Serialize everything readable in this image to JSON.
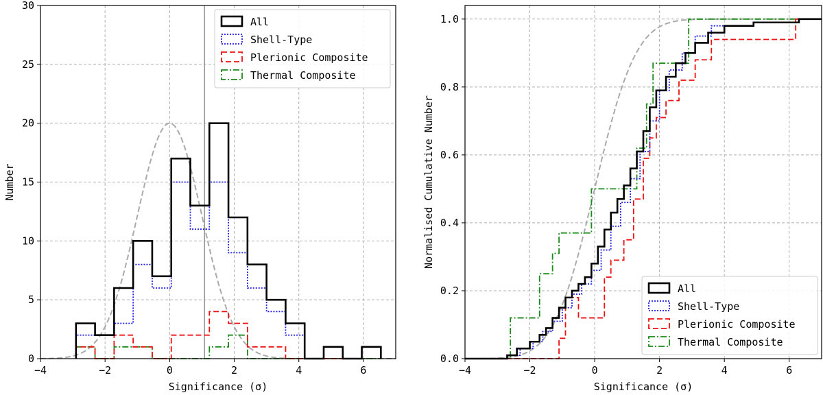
{
  "chart_data": [
    {
      "type": "histogram",
      "xlabel": "Significance (σ)",
      "ylabel": "Number",
      "xlim": [
        -4,
        7
      ],
      "ylim": [
        0,
        30
      ],
      "xticks": [
        -4,
        -2,
        0,
        2,
        4,
        6
      ],
      "yticks": [
        0,
        5,
        10,
        15,
        20,
        25,
        30
      ],
      "grid": true,
      "legend_position": "top-right",
      "bin_edges": [
        -2.9,
        -2.31,
        -1.72,
        -1.13,
        -0.54,
        0.05,
        0.64,
        1.23,
        1.82,
        2.41,
        3.0,
        3.59,
        4.18,
        4.77,
        5.36,
        5.95,
        6.54
      ],
      "series": [
        {
          "name": "All",
          "style": "solid",
          "color": "#000000",
          "counts": [
            3,
            2,
            6,
            10,
            7,
            17,
            13,
            20,
            12,
            8,
            5,
            3,
            0,
            1,
            0,
            1
          ]
        },
        {
          "name": "Shell-Type",
          "style": "dotted",
          "color": "#1f1fe6",
          "counts": [
            2,
            2,
            3,
            8,
            6,
            15,
            11,
            15,
            9,
            6,
            4,
            2,
            0,
            1,
            0,
            1
          ]
        },
        {
          "name": "Plerionic Composite",
          "style": "dashed",
          "color": "#ee1111",
          "counts": [
            1,
            0,
            2,
            1,
            0,
            2,
            2,
            4,
            3,
            1,
            1,
            0,
            0,
            0,
            0,
            1
          ]
        },
        {
          "name": "Thermal Composite",
          "style": "dashdot",
          "color": "#1a8a1a",
          "counts": [
            1,
            0,
            1,
            1,
            0,
            0,
            0,
            1,
            2,
            0,
            0,
            0,
            0,
            0,
            0,
            0
          ]
        }
      ],
      "reference_curve": {
        "type": "gaussian",
        "mean": 0,
        "sigma": 1,
        "peak": 20,
        "color": "#aaaaaa",
        "style": "dashed"
      },
      "vertical_line": {
        "x": 1.08,
        "color": "#999999"
      }
    },
    {
      "type": "step-cdf",
      "xlabel": "Significance (σ)",
      "ylabel": "Normalised Cumulative Number",
      "xlim": [
        -4,
        7
      ],
      "ylim": [
        0,
        1.04
      ],
      "xticks": [
        -4,
        -2,
        0,
        2,
        4,
        6
      ],
      "yticks": [
        0.0,
        0.2,
        0.4,
        0.6,
        0.8,
        1.0
      ],
      "ytick_labels": [
        "0.0",
        "0.2",
        "0.4",
        "0.6",
        "0.8",
        "1.0"
      ],
      "grid": true,
      "legend_position": "bottom-right",
      "series": [
        {
          "name": "All",
          "style": "solid",
          "color": "#000000",
          "x": [
            -2.7,
            -2.4,
            -2.0,
            -1.7,
            -1.5,
            -1.3,
            -1.1,
            -0.9,
            -0.7,
            -0.5,
            -0.3,
            -0.1,
            0.1,
            0.3,
            0.5,
            0.7,
            0.9,
            1.1,
            1.3,
            1.5,
            1.7,
            1.9,
            2.2,
            2.5,
            2.8,
            3.1,
            3.5,
            4.0,
            4.9,
            6.3
          ],
          "y": [
            0.01,
            0.03,
            0.05,
            0.07,
            0.09,
            0.12,
            0.15,
            0.18,
            0.2,
            0.22,
            0.24,
            0.28,
            0.33,
            0.38,
            0.43,
            0.47,
            0.51,
            0.56,
            0.61,
            0.67,
            0.74,
            0.79,
            0.83,
            0.87,
            0.9,
            0.93,
            0.96,
            0.98,
            0.99,
            1.0
          ]
        },
        {
          "name": "Shell-Type",
          "style": "dotted",
          "color": "#1f1fe6",
          "x": [
            -2.7,
            -2.3,
            -1.9,
            -1.6,
            -1.3,
            -1.0,
            -0.7,
            -0.4,
            -0.1,
            0.2,
            0.5,
            0.8,
            1.1,
            1.4,
            1.7,
            2.0,
            2.3,
            2.7,
            3.1,
            3.6,
            4.9,
            6.3
          ],
          "y": [
            0.01,
            0.03,
            0.05,
            0.08,
            0.11,
            0.15,
            0.19,
            0.22,
            0.26,
            0.32,
            0.39,
            0.46,
            0.53,
            0.61,
            0.7,
            0.79,
            0.85,
            0.9,
            0.95,
            0.98,
            0.99,
            1.0
          ]
        },
        {
          "name": "Plerionic Composite",
          "style": "dashed",
          "color": "#ee1111",
          "x": [
            -1.1,
            -0.9,
            -0.5,
            0.3,
            0.5,
            0.9,
            1.2,
            1.5,
            1.7,
            1.9,
            2.2,
            2.6,
            3.1,
            3.6,
            6.2
          ],
          "y": [
            0.06,
            0.18,
            0.12,
            0.24,
            0.29,
            0.35,
            0.47,
            0.59,
            0.65,
            0.71,
            0.76,
            0.82,
            0.88,
            0.94,
            1.0
          ]
        },
        {
          "name": "Thermal Composite",
          "style": "dashdot",
          "color": "#1a8a1a",
          "x": [
            -2.6,
            -1.7,
            -1.3,
            -1.1,
            -0.6,
            -0.1,
            0.8,
            1.3,
            1.6,
            1.8,
            2.3,
            2.9
          ],
          "y": [
            0.12,
            0.25,
            0.31,
            0.37,
            0.37,
            0.5,
            0.5,
            0.62,
            0.75,
            0.87,
            0.87,
            1.0
          ]
        }
      ],
      "reference_curve": {
        "type": "gaussian-cdf",
        "mean": 0,
        "sigma": 1,
        "color": "#aaaaaa",
        "style": "dashed"
      }
    }
  ]
}
